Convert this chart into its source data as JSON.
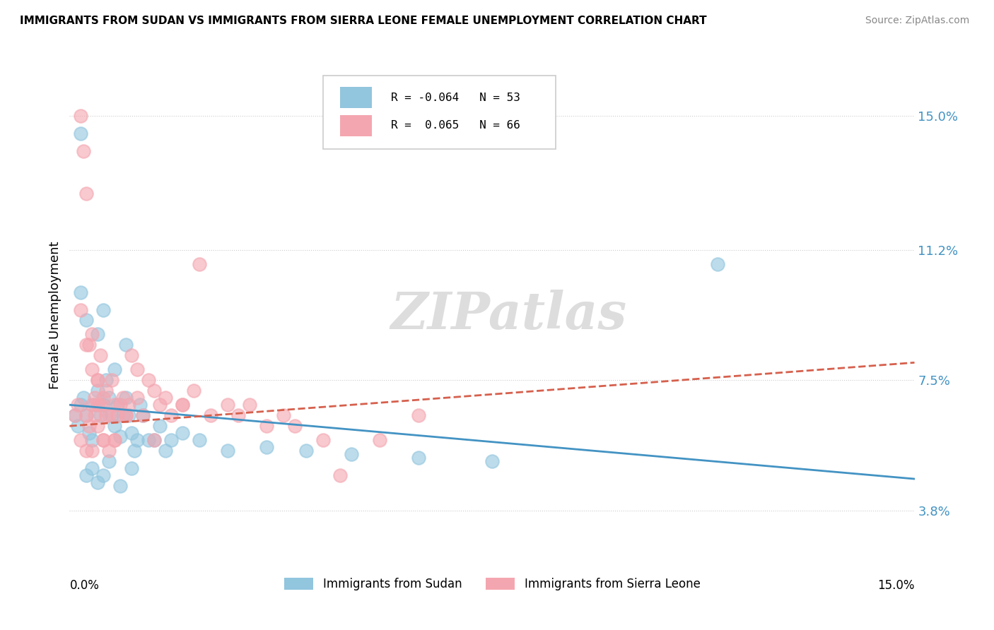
{
  "title": "IMMIGRANTS FROM SUDAN VS IMMIGRANTS FROM SIERRA LEONE FEMALE UNEMPLOYMENT CORRELATION CHART",
  "source": "Source: ZipAtlas.com",
  "ylabel": "Female Unemployment",
  "y_ticks": [
    3.8,
    7.5,
    11.2,
    15.0
  ],
  "x_min": 0.0,
  "x_max": 15.0,
  "y_min": 2.2,
  "y_max": 16.5,
  "sudan_color": "#92c5de",
  "sierra_leone_color": "#f4a6b0",
  "sudan_line_color": "#4393c3",
  "sierra_leone_line_color": "#d6604d",
  "tick_color": "#4393c3",
  "sudan_R": -0.064,
  "sudan_N": 53,
  "sierra_leone_R": 0.065,
  "sierra_leone_N": 66,
  "sudan_line_x0": 0.0,
  "sudan_line_x1": 15.0,
  "sudan_line_y0": 6.8,
  "sudan_line_y1": 4.7,
  "sierra_leone_line_x0": 0.0,
  "sierra_leone_line_x1": 15.0,
  "sierra_leone_line_y0": 6.2,
  "sierra_leone_line_y1": 8.0,
  "sudan_points_x": [
    0.1,
    0.15,
    0.2,
    0.25,
    0.3,
    0.35,
    0.4,
    0.45,
    0.5,
    0.55,
    0.6,
    0.65,
    0.7,
    0.75,
    0.8,
    0.85,
    0.9,
    0.95,
    1.0,
    1.05,
    1.1,
    1.15,
    1.2,
    1.25,
    1.3,
    1.4,
    1.5,
    1.6,
    1.7,
    1.8,
    2.0,
    2.3,
    2.8,
    3.5,
    4.2,
    5.0,
    6.2,
    7.5,
    0.3,
    0.2,
    0.5,
    0.6,
    0.8,
    1.0,
    0.4,
    0.7,
    0.3,
    0.5,
    0.9,
    1.1,
    0.6,
    0.2,
    11.5
  ],
  "sudan_points_y": [
    6.5,
    6.2,
    6.8,
    7.0,
    6.5,
    6.0,
    5.8,
    6.8,
    7.2,
    6.5,
    6.8,
    7.5,
    7.0,
    6.5,
    6.2,
    6.8,
    5.9,
    6.5,
    7.0,
    6.5,
    6.0,
    5.5,
    5.8,
    6.8,
    6.5,
    5.8,
    5.8,
    6.2,
    5.5,
    5.8,
    6.0,
    5.8,
    5.5,
    5.6,
    5.5,
    5.4,
    5.3,
    5.2,
    9.2,
    10.0,
    8.8,
    9.5,
    7.8,
    8.5,
    5.0,
    5.2,
    4.8,
    4.6,
    4.5,
    5.0,
    4.8,
    14.5,
    10.8
  ],
  "sierra_leone_points_x": [
    0.1,
    0.15,
    0.2,
    0.25,
    0.3,
    0.35,
    0.4,
    0.45,
    0.5,
    0.55,
    0.6,
    0.65,
    0.7,
    0.75,
    0.8,
    0.85,
    0.9,
    0.95,
    1.0,
    1.05,
    1.1,
    1.2,
    1.3,
    1.4,
    1.5,
    1.6,
    1.7,
    1.8,
    2.0,
    2.2,
    2.5,
    2.8,
    3.0,
    3.2,
    3.5,
    3.8,
    4.0,
    4.5,
    0.2,
    0.3,
    0.4,
    0.5,
    0.6,
    0.7,
    0.8,
    0.4,
    0.5,
    0.3,
    0.6,
    1.0,
    1.2,
    0.8,
    1.5,
    2.0,
    5.5,
    6.2,
    0.3,
    0.4,
    0.5,
    0.2,
    0.35,
    0.45,
    0.55,
    0.65,
    4.8,
    2.3
  ],
  "sierra_leone_points_y": [
    6.5,
    6.8,
    15.0,
    14.0,
    12.8,
    6.2,
    6.8,
    6.5,
    7.5,
    6.8,
    7.0,
    7.2,
    6.5,
    7.5,
    6.8,
    6.5,
    6.8,
    7.0,
    6.5,
    6.8,
    8.2,
    7.8,
    6.5,
    7.5,
    7.2,
    6.8,
    7.0,
    6.5,
    6.8,
    7.2,
    6.5,
    6.8,
    6.5,
    6.8,
    6.2,
    6.5,
    6.2,
    5.8,
    5.8,
    5.5,
    5.5,
    6.2,
    5.8,
    5.5,
    5.8,
    7.8,
    6.8,
    8.5,
    5.8,
    6.5,
    7.0,
    5.8,
    5.8,
    6.8,
    5.8,
    6.5,
    6.5,
    8.8,
    7.5,
    9.5,
    8.5,
    7.0,
    8.2,
    6.5,
    4.8,
    10.8
  ]
}
